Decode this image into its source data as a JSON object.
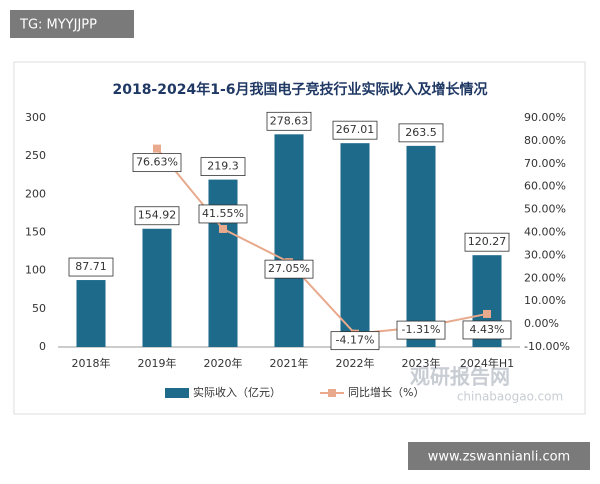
{
  "overlay": {
    "tag": "TG: MYYJJPP",
    "url": "www.zswannianli.com",
    "watermark": [
      "观研报告网",
      "chinabaogao.com"
    ]
  },
  "chart_data": {
    "type": "bar",
    "title": "2018-2024年1-6月我国电子竞技行业实际收入及增长情况",
    "categories": [
      "2018年",
      "2019年",
      "2020年",
      "2021年",
      "2022年",
      "2023年",
      "2024年H1"
    ],
    "series": [
      {
        "name": "实际收入（亿元）",
        "type": "bar",
        "axis": "y",
        "color": "#1d6a8a",
        "values": [
          87.71,
          154.92,
          219.3,
          278.63,
          267.01,
          263.5,
          120.27
        ]
      },
      {
        "name": "同比增长（%）",
        "type": "line",
        "axis": "y2",
        "color": "#e8a98c",
        "values": [
          null,
          76.63,
          41.55,
          27.05,
          -4.17,
          -1.31,
          4.43
        ],
        "value_labels": [
          null,
          "76.63%",
          "41.55%",
          "27.05%",
          "-4.17%",
          "-1.31%",
          "4.43%"
        ]
      }
    ],
    "ylim": [
      0,
      300
    ],
    "yticks": [
      0,
      50,
      100,
      150,
      200,
      250,
      300
    ],
    "y2lim": [
      -10,
      90
    ],
    "y2ticks": [
      {
        "value": -10,
        "label": "-10.00%"
      },
      {
        "value": 0,
        "label": "0.00%"
      },
      {
        "value": 10,
        "label": "10.00%"
      },
      {
        "value": 20,
        "label": "20.00%"
      },
      {
        "value": 30,
        "label": "30.00%"
      },
      {
        "value": 40,
        "label": "40.00%"
      },
      {
        "value": 50,
        "label": "50.00%"
      },
      {
        "value": 60,
        "label": "60.00%"
      },
      {
        "value": 70,
        "label": "70.00%"
      },
      {
        "value": 80,
        "label": "80.00%"
      },
      {
        "value": 90,
        "label": "90.00%"
      }
    ],
    "grid": false,
    "legend": "bottom"
  }
}
